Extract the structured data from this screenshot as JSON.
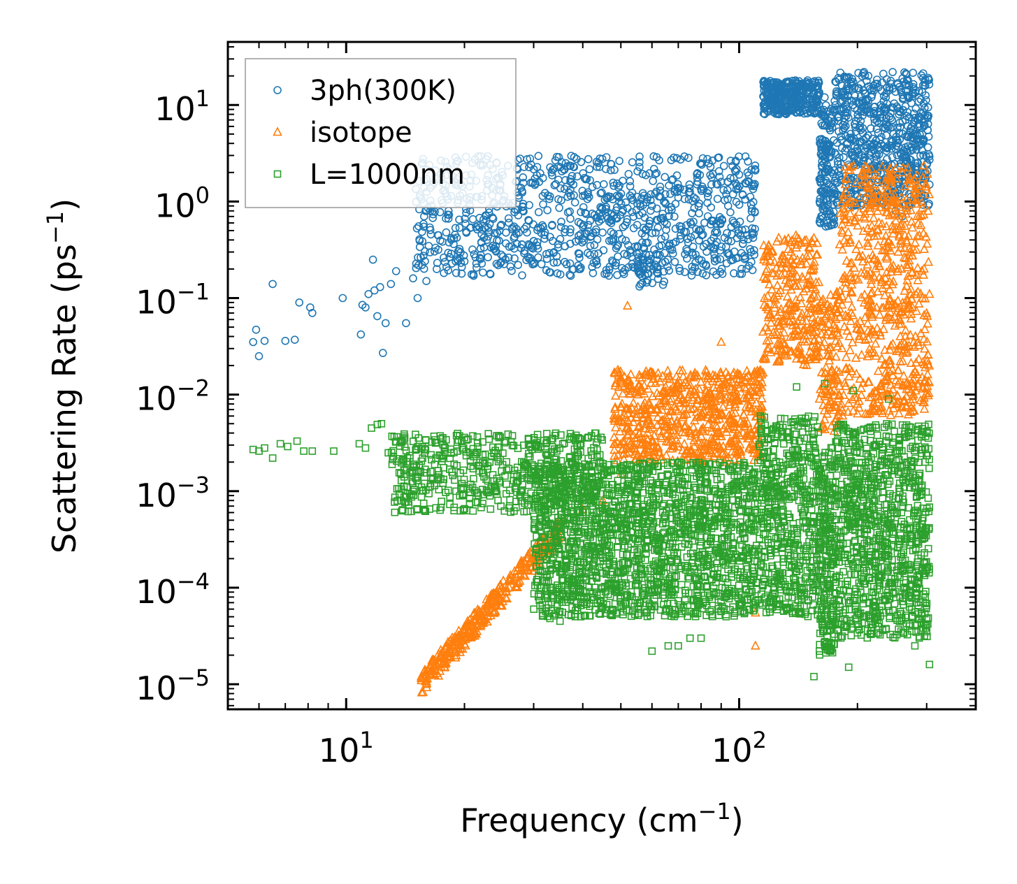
{
  "chart_data": {
    "type": "scatter",
    "xscale": "log",
    "yscale": "log",
    "xlim": [
      5,
      400
    ],
    "ylim": [
      5.5e-06,
      45
    ],
    "xlabel": "Frequency (cm",
    "xlabel_sup": "−1",
    "xlabel_end": ")",
    "ylabel": "Scattering Rate (ps",
    "ylabel_sup": "−1",
    "ylabel_end": ")",
    "x_major_ticks": [
      {
        "value": 10,
        "base": "10",
        "exp": "1"
      },
      {
        "value": 100,
        "base": "10",
        "exp": "2"
      }
    ],
    "y_major_ticks": [
      {
        "value": 10,
        "base": "10",
        "exp": "1"
      },
      {
        "value": 1,
        "base": "10",
        "exp": "0"
      },
      {
        "value": 0.1,
        "base": "10",
        "exp": "−1"
      },
      {
        "value": 0.01,
        "base": "10",
        "exp": "−2"
      },
      {
        "value": 0.001,
        "base": "10",
        "exp": "−3"
      },
      {
        "value": 0.0001,
        "base": "10",
        "exp": "−4"
      },
      {
        "value": 1e-05,
        "base": "10",
        "exp": "−5"
      }
    ],
    "legend_position": "upper-left",
    "series": [
      {
        "name": "3ph(300K)",
        "marker": "circle",
        "color": "#1f77b4",
        "points": [
          [
            5.8,
            0.035
          ],
          [
            5.9,
            0.047
          ],
          [
            6.0,
            0.025
          ],
          [
            6.2,
            0.036
          ],
          [
            6.5,
            0.14
          ],
          [
            7.0,
            0.036
          ],
          [
            7.4,
            0.037
          ],
          [
            7.6,
            0.09
          ],
          [
            8.1,
            0.08
          ],
          [
            8.2,
            0.07
          ],
          [
            9.8,
            0.1
          ],
          [
            10.9,
            0.042
          ],
          [
            11.0,
            0.085
          ],
          [
            11.2,
            0.08
          ],
          [
            11.4,
            0.11
          ],
          [
            11.7,
            0.25
          ],
          [
            11.8,
            0.12
          ],
          [
            12.0,
            0.065
          ],
          [
            12.2,
            0.13
          ],
          [
            12.4,
            0.027
          ],
          [
            12.6,
            0.055
          ],
          [
            13.0,
            0.14
          ],
          [
            13.4,
            0.19
          ],
          [
            14.2,
            0.055
          ],
          [
            14.8,
            0.16
          ],
          [
            15.2,
            0.1
          ],
          [
            15.6,
            0.22
          ],
          [
            16,
            0.15
          ],
          [
            17,
            0.2
          ],
          [
            18,
            0.21
          ],
          [
            19,
            0.24
          ],
          [
            20,
            0.24
          ],
          [
            22,
            0.28
          ],
          [
            24,
            0.31
          ],
          [
            26,
            0.34
          ],
          [
            28,
            0.36
          ],
          [
            30,
            0.39
          ],
          [
            33,
            0.43
          ],
          [
            36,
            0.48
          ],
          [
            40,
            0.55
          ],
          [
            44,
            0.62
          ],
          [
            48,
            0.72
          ],
          [
            52,
            0.85
          ],
          [
            56,
            0.95
          ],
          [
            60,
            0.9
          ],
          [
            65,
            0.95
          ],
          [
            70,
            1.1
          ],
          [
            75,
            1.25
          ],
          [
            80,
            1.35
          ],
          [
            85,
            1.5
          ],
          [
            90,
            1.6
          ],
          [
            95,
            1.75
          ],
          [
            100,
            1.9
          ],
          [
            105,
            2.0
          ],
          [
            110,
            2.1
          ],
          [
            118,
            13
          ],
          [
            125,
            14
          ],
          [
            135,
            13
          ],
          [
            145,
            14
          ],
          [
            155,
            13
          ],
          [
            165,
            12
          ],
          [
            175,
            11
          ],
          [
            185,
            12
          ],
          [
            195,
            10
          ],
          [
            210,
            10
          ],
          [
            225,
            8
          ],
          [
            235,
            9
          ],
          [
            245,
            7
          ],
          [
            255,
            8
          ],
          [
            265,
            7
          ],
          [
            275,
            6
          ],
          [
            285,
            7
          ],
          [
            295,
            6
          ],
          [
            305,
            1.5
          ],
          [
            165,
            2
          ],
          [
            166,
            1.2
          ],
          [
            167,
            0.8
          ],
          [
            168,
            0.6
          ],
          [
            169,
            1.5
          ],
          [
            215,
            3
          ],
          [
            218,
            2.2
          ],
          [
            225,
            2
          ],
          [
            240,
            1.8
          ],
          [
            245,
            1.1
          ],
          [
            250,
            0.8
          ],
          [
            260,
            0.7
          ],
          [
            270,
            0.9
          ]
        ],
        "clusters": [
          [
            15,
            110,
            0.17,
            3.0,
            1000,
            1.0
          ],
          [
            115,
            160,
            8,
            18,
            320,
            1.0
          ],
          [
            160,
            175,
            0.55,
            10,
            150,
            1.0
          ],
          [
            175,
            305,
            0.9,
            22,
            650,
            1.0
          ],
          [
            55,
            65,
            0.13,
            0.3,
            40,
            1.0
          ]
        ]
      },
      {
        "name": "isotope",
        "marker": "triangle",
        "color": "#ff7f0e",
        "points": [
          [
            16,
            1e-05
          ],
          [
            17,
            1.3e-05
          ],
          [
            18,
            1.8e-05
          ],
          [
            19,
            2.2e-05
          ],
          [
            20,
            3e-05
          ],
          [
            22,
            4.5e-05
          ],
          [
            24,
            7e-05
          ],
          [
            26,
            0.0001
          ],
          [
            28,
            0.00015
          ],
          [
            30,
            0.00022
          ],
          [
            32,
            0.0003
          ],
          [
            34,
            0.0004
          ],
          [
            36,
            0.0005
          ],
          [
            40,
            0.00065
          ],
          [
            45,
            0.0008
          ],
          [
            50,
            0.0015
          ],
          [
            52,
            0.083
          ],
          [
            90,
            0.035
          ],
          [
            110,
            2.5e-05
          ],
          [
            110,
            5.5e-05
          ],
          [
            150,
            0.17
          ],
          [
            160,
            0.009
          ],
          [
            200,
            0.008
          ]
        ],
        "clusters": [
          [
            15.5,
            35,
            1e-05,
            0.0004,
            350,
            0.4
          ],
          [
            48,
            115,
            0.002,
            0.018,
            700,
            1.0
          ],
          [
            115,
            160,
            0.02,
            0.45,
            280,
            1.0
          ],
          [
            160,
            180,
            0.004,
            0.12,
            120,
            1.0
          ],
          [
            180,
            305,
            0.006,
            2.4,
            650,
            1.0
          ]
        ]
      },
      {
        "name": "L=1000nm",
        "marker": "square",
        "color": "#2ca02c",
        "points": [
          [
            5.8,
            0.0027
          ],
          [
            6.0,
            0.0026
          ],
          [
            6.2,
            0.0028
          ],
          [
            6.5,
            0.0022
          ],
          [
            6.8,
            0.0031
          ],
          [
            7.1,
            0.0029
          ],
          [
            7.5,
            0.0033
          ],
          [
            7.8,
            0.0026
          ],
          [
            8.2,
            0.0026
          ],
          [
            9.3,
            0.0026
          ],
          [
            10.8,
            0.0031
          ],
          [
            11.2,
            0.0028
          ],
          [
            11.6,
            0.0045
          ],
          [
            12.0,
            0.0049
          ],
          [
            12.3,
            0.005
          ],
          [
            12.8,
            0.0025
          ],
          [
            33,
            4.8e-05
          ],
          [
            35,
            4.5e-05
          ],
          [
            60,
            2.2e-05
          ],
          [
            66,
            2.5e-05
          ],
          [
            70,
            2.5e-05
          ],
          [
            75,
            3e-05
          ],
          [
            80,
            3e-05
          ],
          [
            155,
            1.2e-05
          ],
          [
            160,
            2.2e-05
          ],
          [
            190,
            1.5e-05
          ],
          [
            280,
            2.5e-05
          ],
          [
            305,
            1.6e-05
          ],
          [
            140,
            0.012
          ],
          [
            165,
            0.013
          ],
          [
            195,
            0.011
          ],
          [
            240,
            0.009
          ]
        ],
        "clusters": [
          [
            13,
            45,
            0.0006,
            0.004,
            550,
            1.0
          ],
          [
            30,
            112,
            5e-05,
            0.002,
            1800,
            1.0
          ],
          [
            112,
            160,
            5e-05,
            0.006,
            550,
            1.0
          ],
          [
            160,
            175,
            2e-05,
            0.003,
            220,
            1.0
          ],
          [
            175,
            305,
            3e-05,
            0.005,
            950,
            1.0
          ]
        ]
      }
    ]
  }
}
